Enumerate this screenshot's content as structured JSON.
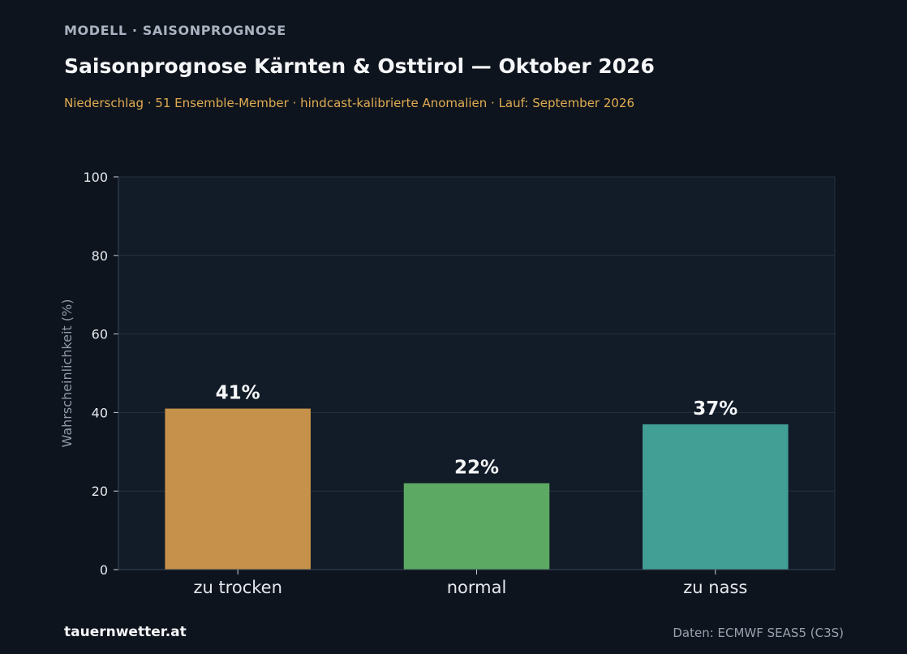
{
  "header": {
    "eyebrow": "MODELL · SAISONPROGNOSE",
    "title": "Saisonprognose Kärnten & Osttirol — Oktober 2026",
    "subtitle": "Niederschlag · 51 Ensemble-Member · hindcast-kalibrierte Anomalien · Lauf: September 2026"
  },
  "footer": {
    "brand": "tauernwetter.at",
    "source": "Daten: ECMWF SEAS5 (C3S)"
  },
  "colors": {
    "background": "#0e141d",
    "plot_background": "#121c28",
    "grid": "#26313f",
    "subtitle": "#e0ac52"
  },
  "chart_data": {
    "type": "bar",
    "title": "Saisonprognose Kärnten & Osttirol — Oktober 2026",
    "ylabel": "Wahrscheinlichkeit (%)",
    "xlabel": "",
    "ylim": [
      0,
      100
    ],
    "yticks": [
      0,
      20,
      40,
      60,
      80,
      100
    ],
    "grid": true,
    "categories": [
      "zu trocken",
      "normal",
      "zu nass"
    ],
    "values": [
      41,
      22,
      37
    ],
    "value_labels": [
      "41%",
      "22%",
      "37%"
    ],
    "bar_colors": [
      "#c5914b",
      "#5ca963",
      "#419f96"
    ]
  }
}
